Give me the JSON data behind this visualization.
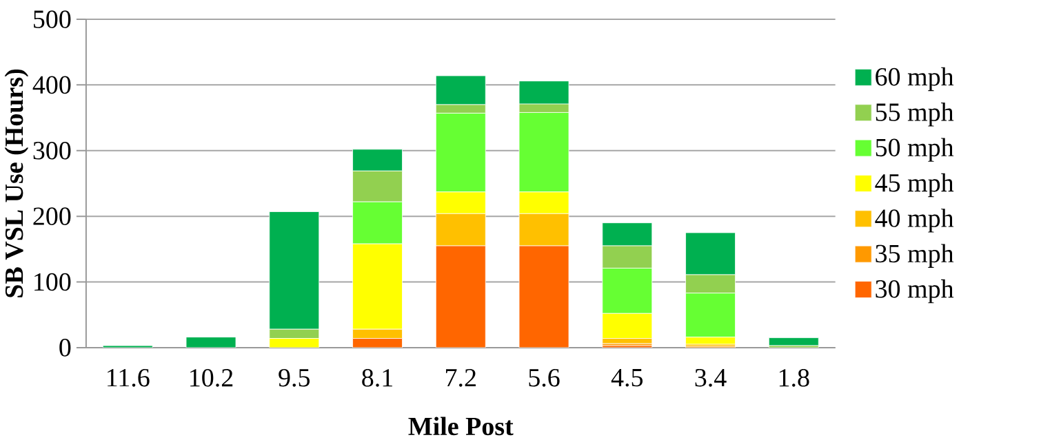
{
  "chart_data": {
    "type": "bar",
    "stacked": true,
    "xlabel": "Mile Post",
    "ylabel": "SB VSL Use (Hours)",
    "categories": [
      "11.6",
      "10.2",
      "9.5",
      "8.1",
      "7.2",
      "5.6",
      "4.5",
      "3.4",
      "1.8"
    ],
    "series": [
      {
        "name": "30 mph",
        "color": "#ff6600",
        "values": [
          0,
          0,
          0,
          14,
          155,
          155,
          3,
          0,
          0
        ]
      },
      {
        "name": "35 mph",
        "color": "#ff9900",
        "values": [
          0,
          0,
          0,
          0,
          0,
          0,
          3,
          2,
          0
        ]
      },
      {
        "name": "40 mph",
        "color": "#ffc000",
        "values": [
          0,
          0,
          0,
          14,
          49,
          49,
          8,
          3,
          0
        ]
      },
      {
        "name": "45 mph",
        "color": "#ffff00",
        "values": [
          0,
          0,
          14,
          130,
          33,
          33,
          38,
          11,
          0
        ]
      },
      {
        "name": "50 mph",
        "color": "#66ff33",
        "values": [
          0,
          0,
          0,
          64,
          120,
          121,
          69,
          67,
          0
        ]
      },
      {
        "name": "55 mph",
        "color": "#92d050",
        "values": [
          null,
          null,
          14,
          47,
          13,
          13,
          34,
          28,
          3
        ]
      },
      {
        "name": "60 mph",
        "color": "#00b050",
        "values": [
          3,
          16,
          179,
          33,
          44,
          35,
          35,
          64,
          12
        ]
      }
    ],
    "ylim": [
      0,
      500
    ],
    "yticks": [
      0,
      100,
      200,
      300,
      400,
      500
    ],
    "grid": "y",
    "legend": "right"
  }
}
